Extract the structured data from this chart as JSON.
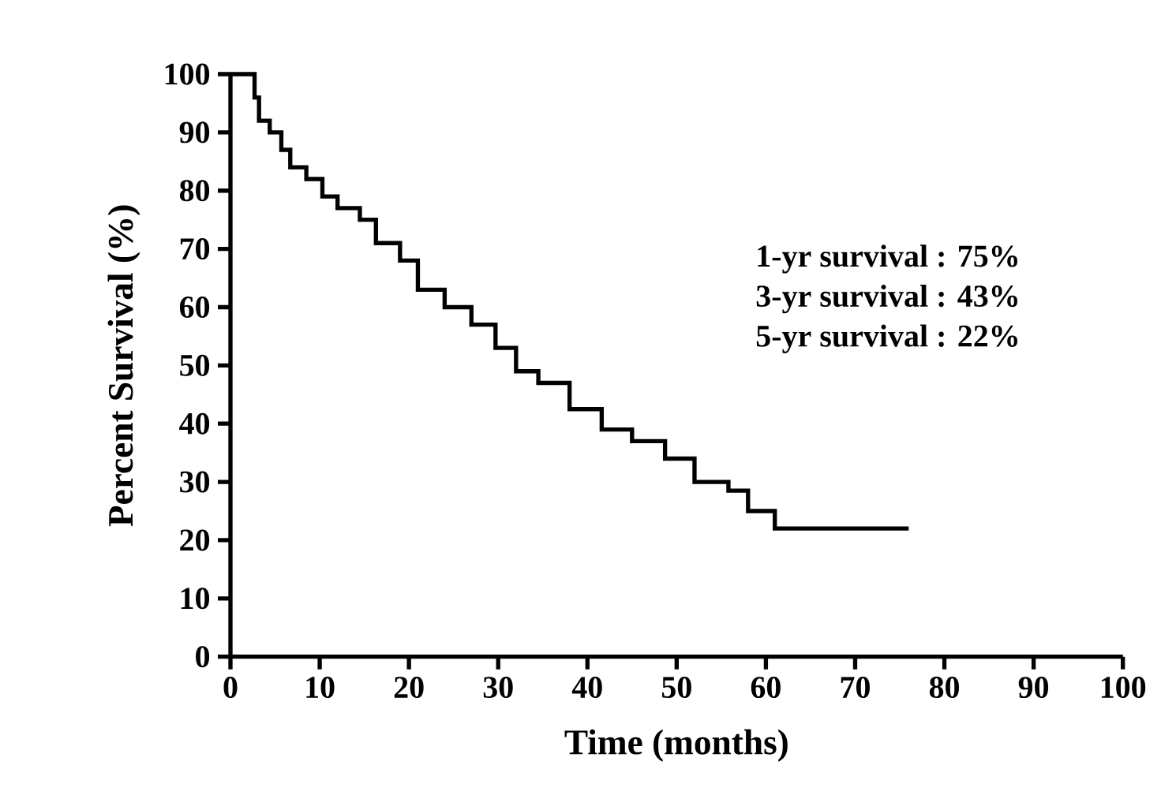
{
  "chart_data": {
    "type": "step",
    "xlabel": "Time (months)",
    "ylabel": "Percent Survival (%)",
    "x": [
      0,
      2.7,
      3.2,
      4.4,
      5.7,
      6.7,
      8.5,
      10.3,
      12,
      14.5,
      16.3,
      19,
      21,
      24,
      27,
      29.7,
      32,
      34.5,
      38,
      41.6,
      45,
      48.7,
      52,
      55.8,
      58,
      61,
      76
    ],
    "values": [
      100,
      96,
      92,
      90,
      87,
      84,
      82,
      79,
      77,
      75,
      71,
      68,
      63,
      60,
      57,
      53,
      49,
      47,
      42.5,
      39,
      37,
      34,
      30,
      28.5,
      25,
      22,
      22
    ],
    "color": "#000000",
    "xlim": [
      0,
      100
    ],
    "xticks": [
      0,
      10,
      20,
      30,
      40,
      50,
      60,
      70,
      80,
      90,
      100
    ],
    "ylim": [
      0,
      100
    ],
    "yticks": [
      0,
      10,
      20,
      30,
      40,
      50,
      60,
      70,
      80,
      90,
      100
    ],
    "annotations": [
      "1-yr survival : 75%",
      "3-yr survival : 43%",
      "5-yr survival : 22%"
    ]
  }
}
